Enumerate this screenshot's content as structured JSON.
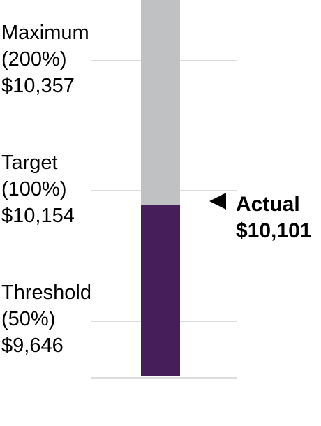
{
  "chart_data": {
    "type": "bar",
    "orientation": "vertical",
    "ylim": [
      9500,
      10500
    ],
    "grid": false,
    "levels": [
      {
        "line1": "Maximum",
        "line2": "(200%)",
        "line3": "$10,357",
        "value": 10357
      },
      {
        "line1": "Target",
        "line2": "(100%)",
        "line3": "$10,154",
        "value": 10154
      },
      {
        "line1": "Threshold",
        "line2": "(50%)",
        "line3": "$9,646",
        "value": 9646
      }
    ],
    "actual": {
      "label": "Actual",
      "value_text": "$10,101",
      "value": 10101
    }
  },
  "colors": {
    "achieved": "#461e5a",
    "remaining": "#c0c1c3",
    "gridline": "#dcdcdc",
    "text": "#000000"
  }
}
